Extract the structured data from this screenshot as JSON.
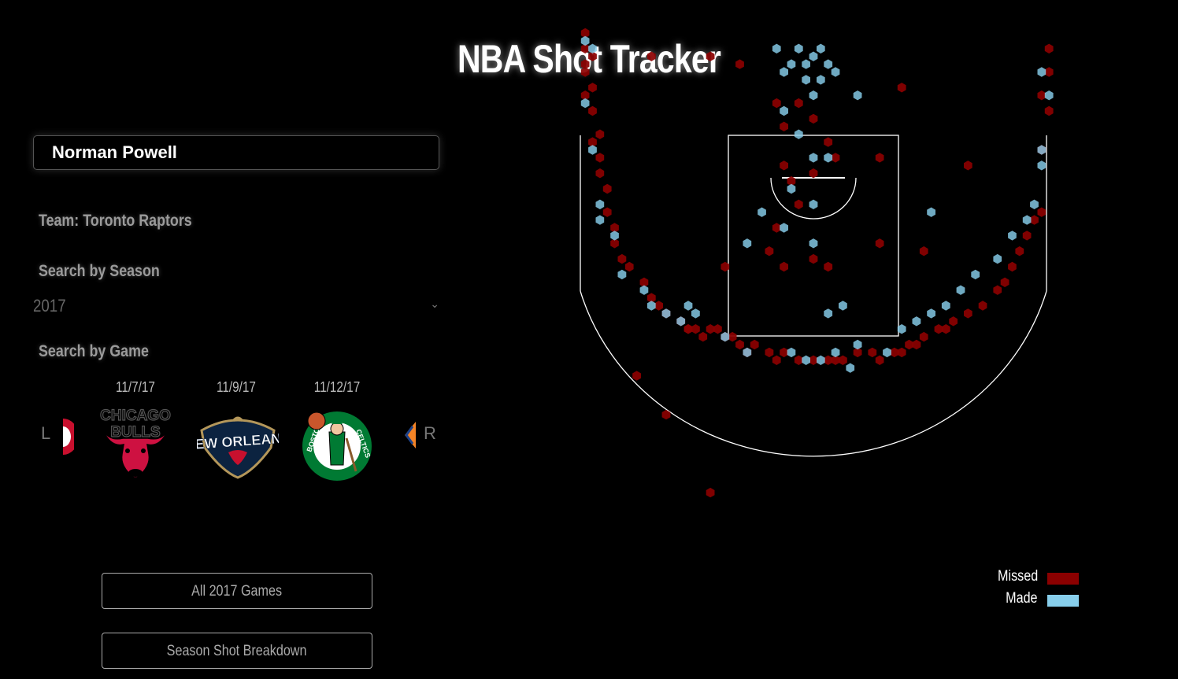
{
  "page": {
    "title": "NBA Shot Tracker"
  },
  "player_search": {
    "value": "Norman Powell"
  },
  "team_label": "Team: Toronto Raptors",
  "season": {
    "label": "Search by Season",
    "selected": "2017"
  },
  "game_search": {
    "label": "Search by Game",
    "prev_arrow": "L",
    "next_arrow": "R",
    "games": [
      {
        "date": "11/7/17",
        "team": "Chicago Bulls",
        "logo_text": "CHICAGO BULLS"
      },
      {
        "date": "11/9/17",
        "team": "New Orleans Pelicans",
        "logo_text": "NEW ORLEANS"
      },
      {
        "date": "11/12/17",
        "team": "Boston Celtics",
        "logo_text": "BOSTON CELTICS"
      }
    ]
  },
  "buttons": {
    "all_games": "All 2017 Games",
    "breakdown": "Season Shot Breakdown"
  },
  "legend": {
    "missed_label": "Missed",
    "made_label": "Made",
    "missed_color": "#8b0000",
    "made_color": "#87ceeb"
  },
  "chart_data": {
    "type": "scatter",
    "title": "",
    "series": [
      {
        "name": "Missed",
        "color": "#8b0000",
        "points": [
          [
            -31,
            -18
          ],
          [
            -31,
            -20
          ],
          [
            -31,
            -16
          ],
          [
            -31,
            -15
          ],
          [
            -31,
            -12
          ],
          [
            -30,
            -17
          ],
          [
            -30,
            -13
          ],
          [
            -30,
            -10
          ],
          [
            -30,
            -6
          ],
          [
            -29,
            -7
          ],
          [
            -29,
            -4
          ],
          [
            -29,
            -2
          ],
          [
            -28,
            0
          ],
          [
            -28,
            3
          ],
          [
            -27,
            5
          ],
          [
            -27,
            7
          ],
          [
            -26,
            9
          ],
          [
            -25,
            10
          ],
          [
            -23,
            12
          ],
          [
            -22,
            14
          ],
          [
            -21,
            15
          ],
          [
            -20,
            16
          ],
          [
            -18,
            17
          ],
          [
            -17,
            18
          ],
          [
            -16,
            18
          ],
          [
            -15,
            19
          ],
          [
            -14,
            18
          ],
          [
            -13,
            18
          ],
          [
            -12,
            19
          ],
          [
            -11,
            19
          ],
          [
            -10,
            20
          ],
          [
            -9,
            21
          ],
          [
            -8,
            20
          ],
          [
            -6,
            21
          ],
          [
            -5,
            22
          ],
          [
            -4,
            21
          ],
          [
            -2,
            22
          ],
          [
            0,
            22
          ],
          [
            2,
            22
          ],
          [
            3,
            22
          ],
          [
            4,
            22
          ],
          [
            6,
            21
          ],
          [
            8,
            21
          ],
          [
            9,
            22
          ],
          [
            11,
            21
          ],
          [
            12,
            21
          ],
          [
            13,
            20
          ],
          [
            14,
            20
          ],
          [
            15,
            19
          ],
          [
            17,
            18
          ],
          [
            18,
            18
          ],
          [
            19,
            17
          ],
          [
            21,
            16
          ],
          [
            23,
            15
          ],
          [
            25,
            13
          ],
          [
            26,
            12
          ],
          [
            27,
            10
          ],
          [
            28,
            8
          ],
          [
            29,
            6
          ],
          [
            30,
            4
          ],
          [
            31,
            3
          ],
          [
            31,
            -5
          ],
          [
            32,
            -10
          ],
          [
            31,
            -12
          ],
          [
            32,
            -15
          ],
          [
            32,
            -18
          ],
          [
            -22,
            -17
          ],
          [
            -14,
            -17
          ],
          [
            -10,
            -16
          ],
          [
            -5,
            -11
          ],
          [
            -4,
            -8
          ],
          [
            -2,
            -11
          ],
          [
            0,
            -9
          ],
          [
            2,
            -6
          ],
          [
            3,
            -4
          ],
          [
            -4,
            -3
          ],
          [
            -3,
            -1
          ],
          [
            0,
            -2
          ],
          [
            -2,
            2
          ],
          [
            -5,
            5
          ],
          [
            -12,
            10
          ],
          [
            -6,
            8
          ],
          [
            -4,
            10
          ],
          [
            0,
            9
          ],
          [
            2,
            10
          ],
          [
            9,
            7
          ],
          [
            15,
            8
          ],
          [
            21,
            -3
          ],
          [
            9,
            -4
          ],
          [
            12,
            -13
          ],
          [
            -17,
            18
          ],
          [
            -24,
            24
          ],
          [
            -20,
            29
          ],
          [
            -14,
            39
          ]
        ]
      },
      {
        "name": "Made",
        "color": "#87ceeb",
        "points": [
          [
            -31,
            -19
          ],
          [
            -30,
            -18
          ],
          [
            -31,
            -11
          ],
          [
            -30,
            -5
          ],
          [
            -29,
            2
          ],
          [
            -29,
            4
          ],
          [
            -27,
            6
          ],
          [
            -26,
            11
          ],
          [
            -23,
            13
          ],
          [
            -22,
            15
          ],
          [
            -20,
            16
          ],
          [
            -18,
            17
          ],
          [
            -17,
            15
          ],
          [
            -16,
            16
          ],
          [
            -12,
            19
          ],
          [
            -9,
            21
          ],
          [
            -3,
            21
          ],
          [
            -1,
            22
          ],
          [
            1,
            22
          ],
          [
            3,
            21
          ],
          [
            5,
            23
          ],
          [
            6,
            20
          ],
          [
            10,
            21
          ],
          [
            12,
            18
          ],
          [
            14,
            17
          ],
          [
            16,
            16
          ],
          [
            18,
            15
          ],
          [
            20,
            13
          ],
          [
            22,
            11
          ],
          [
            25,
            9
          ],
          [
            27,
            6
          ],
          [
            29,
            4
          ],
          [
            30,
            2
          ],
          [
            31,
            -3
          ],
          [
            31,
            -5
          ],
          [
            32,
            -12
          ],
          [
            31,
            -15
          ],
          [
            -5,
            -18
          ],
          [
            -4,
            -15
          ],
          [
            -3,
            -16
          ],
          [
            -2,
            -18
          ],
          [
            -1,
            -16
          ],
          [
            0,
            -17
          ],
          [
            1,
            -18
          ],
          [
            2,
            -16
          ],
          [
            3,
            -15
          ],
          [
            -1,
            -14
          ],
          [
            1,
            -14
          ],
          [
            0,
            -12
          ],
          [
            -4,
            -10
          ],
          [
            -2,
            -7
          ],
          [
            0,
            -4
          ],
          [
            2,
            -4
          ],
          [
            -3,
            0
          ],
          [
            0,
            2
          ],
          [
            -4,
            5
          ],
          [
            -7,
            3
          ],
          [
            0,
            7
          ],
          [
            6,
            -12
          ],
          [
            2,
            16
          ],
          [
            4,
            15
          ],
          [
            -9,
            7
          ],
          [
            16,
            3
          ]
        ]
      }
    ]
  }
}
